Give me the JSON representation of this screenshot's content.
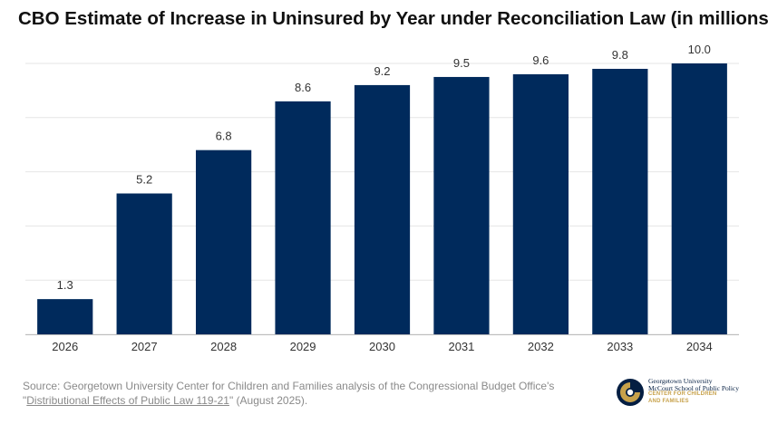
{
  "chart_data": {
    "type": "bar",
    "title": "CBO Estimate of Increase in Uninsured by Year under Reconciliation Law (in millions)",
    "categories": [
      "2026",
      "2027",
      "2028",
      "2029",
      "2030",
      "2031",
      "2032",
      "2033",
      "2034"
    ],
    "values": [
      1.3,
      5.2,
      6.8,
      8.6,
      9.2,
      9.5,
      9.6,
      9.8,
      10.0
    ],
    "value_labels": [
      "1.3",
      "5.2",
      "6.8",
      "8.6",
      "9.2",
      "9.5",
      "9.6",
      "9.8",
      "10.0"
    ],
    "ylim": [
      0,
      10
    ],
    "grid": true,
    "bar_color": "#002a5c",
    "xlabel": "",
    "ylabel": ""
  },
  "source": {
    "prefix": "Source: Georgetown University Center for Children and Families analysis of the Congressional Budget Office's \"",
    "link_text": "Distributional Effects of Public Law 119-21",
    "suffix": "\" (August 2025)."
  },
  "logo": {
    "line1": "Georgetown University",
    "line2": "McCourt School of Public Policy",
    "line3": "CENTER FOR CHILDREN",
    "line4": "AND FAMILIES",
    "icon": "georgetown-seal-icon",
    "colors": {
      "navy": "#041e42",
      "gold": "#c7a14a"
    }
  }
}
